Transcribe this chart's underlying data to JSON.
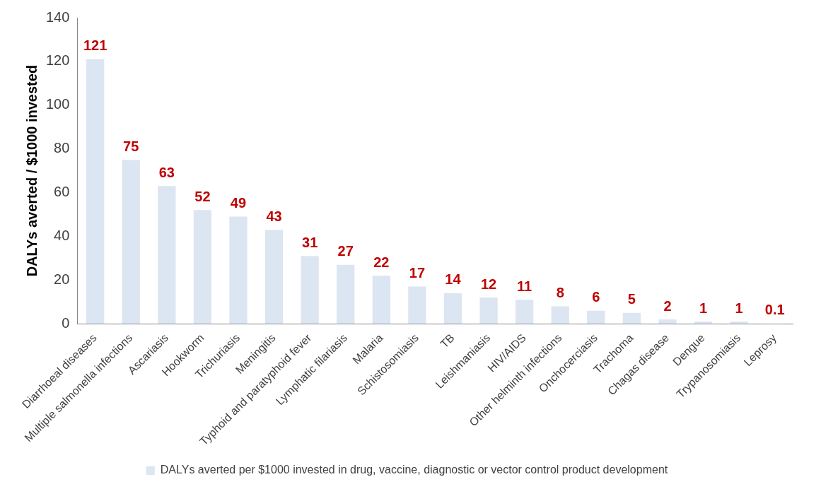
{
  "chart_data": {
    "type": "bar",
    "ylabel": "DALYs averted / $1000 invested",
    "categories": [
      "Diarrhoeal diseases",
      "Multiple salmonella infections",
      "Ascariasis",
      "Hookworm",
      "Trichuriasis",
      "Meningitis",
      "Typhoid and paratyphoid fever",
      "Lymphatic filariasis",
      "Malaria",
      "Schistosomiasis",
      "TB",
      "Leishmaniasis",
      "HIV/AIDS",
      "Other helminth infections",
      "Onchocerciasis",
      "Trachoma",
      "Chagas disease",
      "Dengue",
      "Trypanosomiasis",
      "Leprosy"
    ],
    "series": [
      {
        "name": "DALYs averted per $1000 invested in drug, vaccine, diagnostic or vector control product development",
        "color": "#dce6f2",
        "values": [
          121,
          75,
          63,
          52,
          49,
          43,
          31,
          27,
          22,
          17,
          14,
          12,
          11,
          8,
          6,
          5,
          2,
          1,
          1,
          0.1
        ]
      }
    ],
    "ylim": [
      0,
      140
    ],
    "yticks": [
      0,
      20,
      40,
      60,
      80,
      100,
      120,
      140
    ],
    "grid": false,
    "legend": "bottom",
    "data_labels": true
  }
}
